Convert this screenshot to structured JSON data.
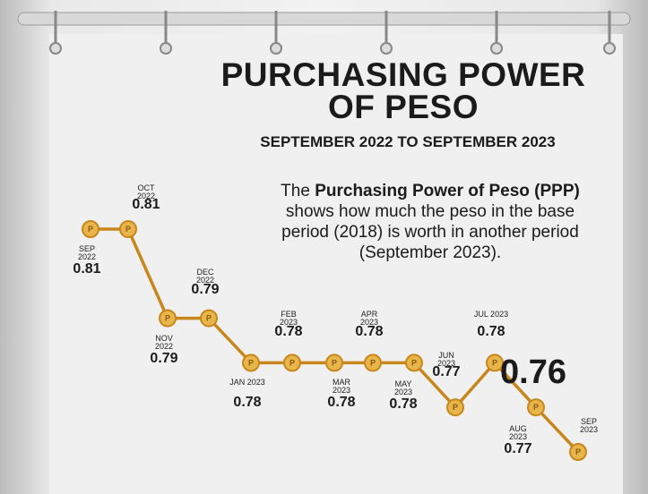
{
  "title": "PURCHASING POWER OF PESO",
  "subtitle": "SEPTEMBER 2022 TO SEPTEMBER 2023",
  "description": [
    "The ",
    "Purchasing Power of Peso (PPP)",
    " shows how much the peso in the base period (2018) is worth in another period (September 2023)."
  ],
  "chart_data": {
    "type": "line",
    "categories": [
      "SEP 2022",
      "OCT 2022",
      "NOV 2022",
      "DEC 2022",
      "JAN 2023",
      "FEB 2023",
      "MAR 2023",
      "APR 2023",
      "MAY 2023",
      "JUN 2023",
      "JUL 2023",
      "AUG 2023",
      "SEP 2023"
    ],
    "values": [
      0.81,
      0.81,
      0.79,
      0.79,
      0.78,
      0.78,
      0.78,
      0.78,
      0.78,
      0.77,
      0.78,
      0.77,
      0.76
    ],
    "color": "#c8871c",
    "marker_symbol": "P"
  }
}
